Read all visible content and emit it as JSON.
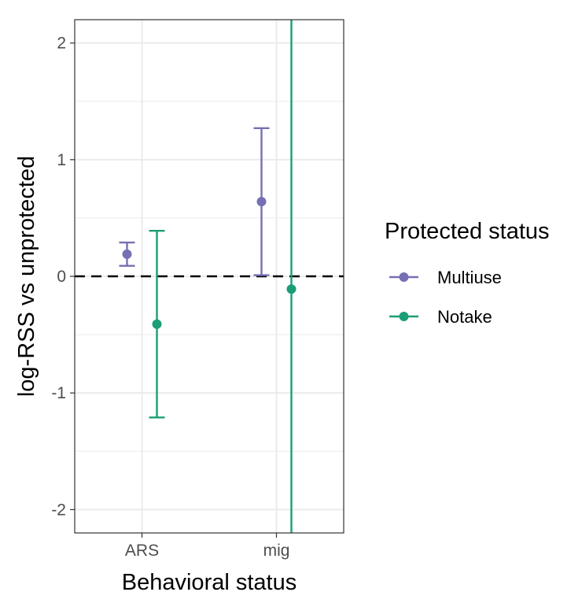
{
  "chart_data": {
    "type": "errorbar",
    "title": "",
    "xlabel": "Behavioral status",
    "ylabel": "log-RSS vs unprotected",
    "categories": [
      "ARS",
      "mig"
    ],
    "ylim": [
      -2.2,
      2.2
    ],
    "y_ticks": [
      -2,
      -1,
      0,
      1,
      2
    ],
    "y_tick_labels": [
      "-2",
      "-1",
      "0",
      "1",
      "2"
    ],
    "reference_line": {
      "y": 0,
      "style": "dashed"
    },
    "grid": true,
    "legend": {
      "title": "Protected status",
      "position": "right"
    },
    "series": [
      {
        "name": "Multiuse",
        "color": "#7570b3",
        "points": [
          {
            "category": "ARS",
            "y": 0.19,
            "ymin": 0.09,
            "ymax": 0.29
          },
          {
            "category": "mig",
            "y": 0.64,
            "ymin": 0.01,
            "ymax": 1.27
          }
        ]
      },
      {
        "name": "Notake",
        "color": "#1b9e77",
        "points": [
          {
            "category": "ARS",
            "y": -0.41,
            "ymin": -1.21,
            "ymax": 0.39
          },
          {
            "category": "mig",
            "y": -0.11,
            "ymin": -2.2,
            "ymax": 2.2,
            "unbounded": true
          }
        ]
      }
    ]
  }
}
